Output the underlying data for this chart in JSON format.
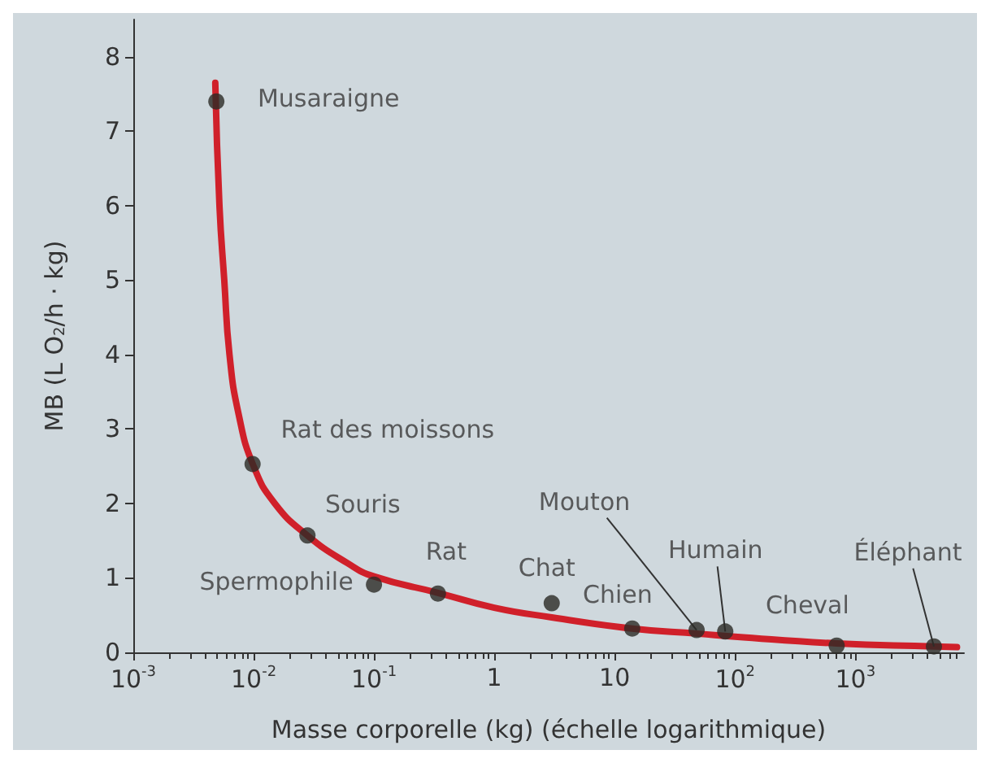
{
  "chart_data": {
    "type": "scatter",
    "xlabel": "Masse corporelle (kg) (échelle logarithmique)",
    "ylabel": "MB (L O$_{2}$/h · kg)",
    "log": "x",
    "xlim": [
      0.001,
      8000
    ],
    "xticks": [
      {
        "value": 0.001,
        "label": "10$^{-3}$"
      },
      {
        "value": 0.01,
        "label": "10$^{-2}$"
      },
      {
        "value": 0.1,
        "label": "10$^{-1}$"
      },
      1,
      10,
      {
        "value": 100,
        "label": "10$^{2}$"
      },
      {
        "value": 1000,
        "label": "10$^{3}$"
      }
    ],
    "ylim": [
      0,
      8.5
    ],
    "yticks": [
      0,
      1,
      2,
      3,
      4,
      5,
      6,
      7,
      8
    ],
    "grid": false,
    "marker": "circle",
    "series": [
      {
        "color": "#2b2b26",
        "x": [
          0.0049,
          0.0098,
          0.028,
          0.1,
          0.34,
          3,
          14,
          48,
          83,
          700,
          4500
        ],
        "values": [
          7.4,
          2.53,
          1.57,
          0.91,
          0.79,
          0.66,
          0.32,
          0.3,
          0.28,
          0.09,
          0.08
        ],
        "value_labels": [
          "Musaraigne",
          "Rat des moissons",
          "Souris",
          "Spermophile",
          "Rat",
          "Chat",
          "Chien",
          "Mouton",
          "Humain",
          "Cheval",
          "Éléphant"
        ]
      },
      {
        "type": "line",
        "color": "#d0202a",
        "line_style": "solid",
        "marker": "none",
        "x": [
          0.0048,
          0.0052,
          0.0057,
          0.0063,
          0.0075,
          0.01,
          0.015,
          0.028,
          0.06,
          0.1,
          0.34,
          1,
          3,
          14,
          50,
          100,
          700,
          4500,
          7000
        ],
        "values": [
          7.65,
          6,
          5,
          4,
          3.2,
          2.5,
          2,
          1.57,
          1.2,
          1.02,
          0.8,
          0.6,
          0.47,
          0.32,
          0.25,
          0.21,
          0.12,
          0.08,
          0.07
        ]
      }
    ]
  }
}
